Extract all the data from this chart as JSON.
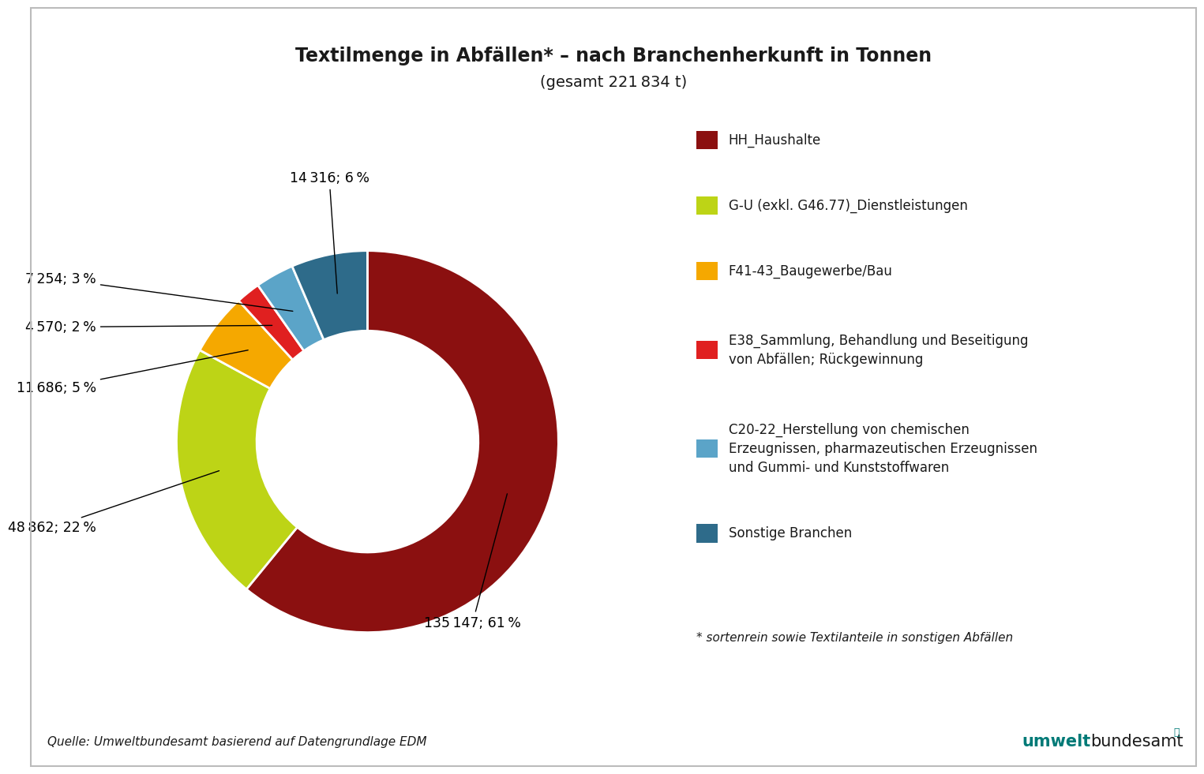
{
  "title_line1": "Textilmenge in Abfällen* – nach Branchenherkunft in Tonnen",
  "title_line2": "(gesamt 221 834 t)",
  "slices": [
    {
      "label": "HH_Haushalte",
      "value": 135147,
      "pct": 61,
      "color": "#8B1010"
    },
    {
      "label": "G-U (exkl. G46.77)_Dienstleistungen",
      "value": 48862,
      "pct": 22,
      "color": "#BDD416"
    },
    {
      "label": "F41-43_Baugewerbe/Bau",
      "value": 11686,
      "pct": 5,
      "color": "#F5A800"
    },
    {
      "label": "E38_Sammlung, Behandlung und Beseitigung\nvon Abfällen; Rückgewinnung",
      "value": 4570,
      "pct": 2,
      "color": "#E02020"
    },
    {
      "label": "C20-22_Herstellung von chemischen\nErzeugnissen, pharmazeutischen Erzeugnissen\nund Gummi- und Kunststoffwaren",
      "value": 7254,
      "pct": 3,
      "color": "#5BA4C8"
    },
    {
      "label": "Sonstige Branchen",
      "value": 14316,
      "pct": 6,
      "color": "#2E6B8A"
    }
  ],
  "ann_texts": [
    "135 147; 61 %",
    "48 862; 22 %",
    "11 686; 5 %",
    "4 570; 2 %",
    "7 254; 3 %",
    "14 316; 6 %"
  ],
  "source_text": "Quelle: Umweltbundesamt basierend auf Datengrundlage EDM",
  "footnote_text": "* sortenrein sowie Textilanteile in sonstigen Abfällen",
  "background_color": "#FFFFFF",
  "border_color": "#BBBBBB",
  "startangle": 90
}
